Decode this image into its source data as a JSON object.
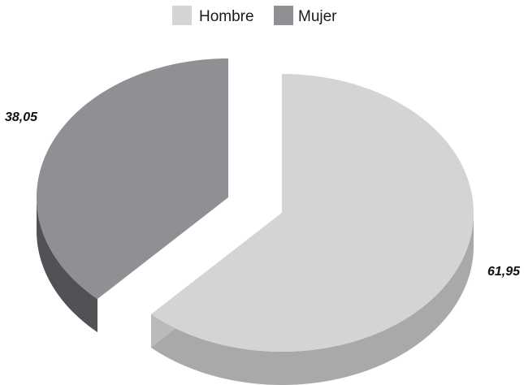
{
  "chart_data": {
    "type": "pie",
    "categories": [
      "Hombre",
      "Mujer"
    ],
    "values": [
      61.95,
      38.05
    ],
    "data_labels": [
      "61,95",
      "38,05"
    ],
    "colors": {
      "Hombre": {
        "top": "#d3d4d6",
        "side": "#a8a9ab",
        "cut": "#b9babc"
      },
      "Mujer": {
        "top": "#8f9094",
        "side": "#505255",
        "cut": "#5d5f62"
      }
    },
    "style": "3d-exploded",
    "legend": {
      "position": "top",
      "entries": [
        "Hombre",
        "Mujer"
      ]
    }
  }
}
